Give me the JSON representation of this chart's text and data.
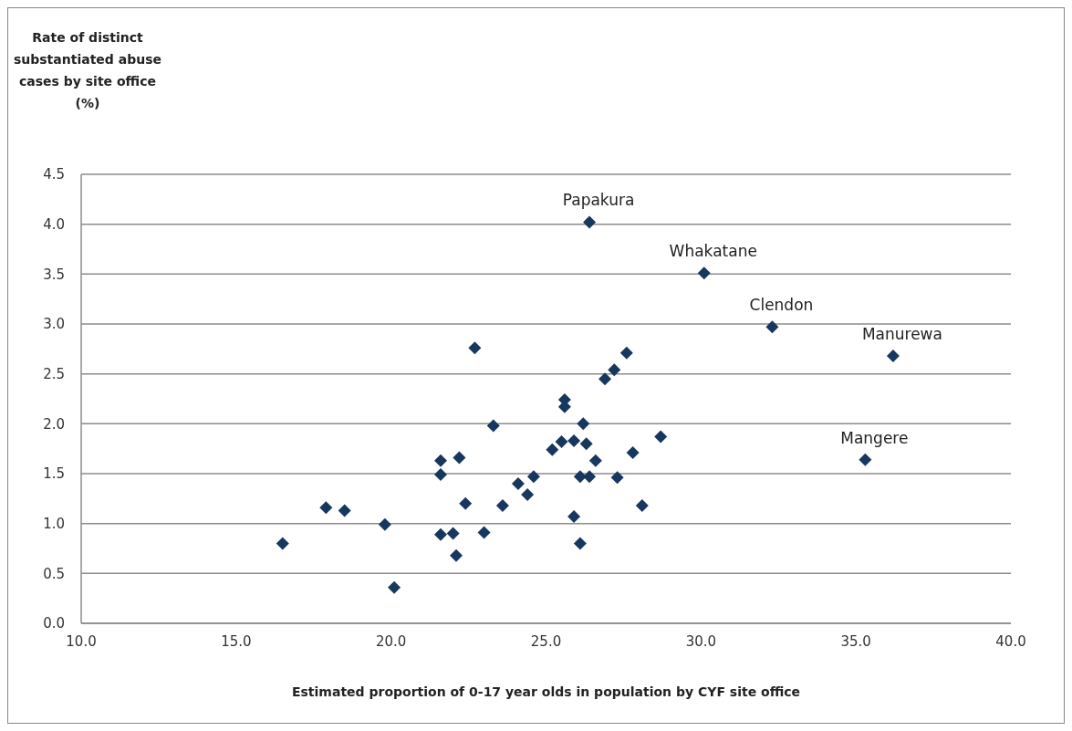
{
  "chart_data": {
    "type": "scatter",
    "ylabel": "Rate of distinct substantiated abuse cases by site office (%)",
    "xlabel": "Estimated proportion of 0-17 year olds in population by CYF site office",
    "xlim": [
      10,
      40
    ],
    "xticks": [
      {
        "value": 10,
        "label": "10.0"
      },
      {
        "value": 15,
        "label": "15.0"
      },
      {
        "value": 20,
        "label": "20.0"
      },
      {
        "value": 25,
        "label": "25.0"
      },
      {
        "value": 30,
        "label": "30.0"
      },
      {
        "value": 35,
        "label": "35.0"
      },
      {
        "value": 40,
        "label": "40.0"
      }
    ],
    "ylim": [
      0,
      4.5
    ],
    "yticks": [
      {
        "value": 0,
        "label": "0.0"
      },
      {
        "value": 0.5,
        "label": "0.5"
      },
      {
        "value": 1,
        "label": "1.0"
      },
      {
        "value": 1.5,
        "label": "1.5"
      },
      {
        "value": 2,
        "label": "2.0"
      },
      {
        "value": 2.5,
        "label": "2.5"
      },
      {
        "value": 3,
        "label": "3.0"
      },
      {
        "value": 3.5,
        "label": "3.5"
      },
      {
        "value": 4,
        "label": "4.0"
      },
      {
        "value": 4.5,
        "label": "4.5"
      }
    ],
    "grid": "y",
    "marker": "diamond",
    "series": [
      {
        "color": "#17375e",
        "x": [
          16.5,
          17.9,
          18.5,
          19.8,
          20.1,
          21.6,
          21.6,
          21.6,
          22.0,
          22.2,
          22.1,
          22.4,
          22.7,
          23.0,
          23.3,
          23.6,
          24.1,
          24.4,
          24.6,
          25.2,
          25.5,
          25.6,
          25.6,
          25.9,
          25.9,
          26.1,
          26.1,
          26.2,
          26.3,
          26.4,
          26.6,
          26.4,
          26.9,
          27.2,
          27.6,
          27.3,
          27.8,
          28.1,
          28.7,
          30.1,
          32.3,
          35.3,
          36.2
        ],
        "values": [
          0.8,
          1.16,
          1.13,
          0.99,
          0.36,
          1.63,
          1.49,
          0.89,
          0.9,
          1.66,
          0.68,
          1.2,
          2.76,
          0.91,
          1.98,
          1.18,
          1.4,
          1.29,
          1.47,
          1.74,
          1.82,
          2.24,
          2.17,
          1.83,
          1.07,
          0.8,
          1.47,
          2.0,
          1.8,
          1.47,
          1.63,
          4.02,
          2.45,
          2.54,
          2.71,
          1.46,
          1.71,
          1.18,
          1.87,
          3.51,
          2.97,
          1.64,
          2.68
        ]
      }
    ],
    "annotations": [
      {
        "text": "Papakura",
        "x": 26.4,
        "y": 4.02
      },
      {
        "text": "Whakatane",
        "x": 30.1,
        "y": 3.51
      },
      {
        "text": "Clendon",
        "x": 32.3,
        "y": 2.97
      },
      {
        "text": "Mangere",
        "x": 35.3,
        "y": 1.64
      },
      {
        "text": "Manurewa",
        "x": 36.2,
        "y": 2.68
      }
    ]
  }
}
